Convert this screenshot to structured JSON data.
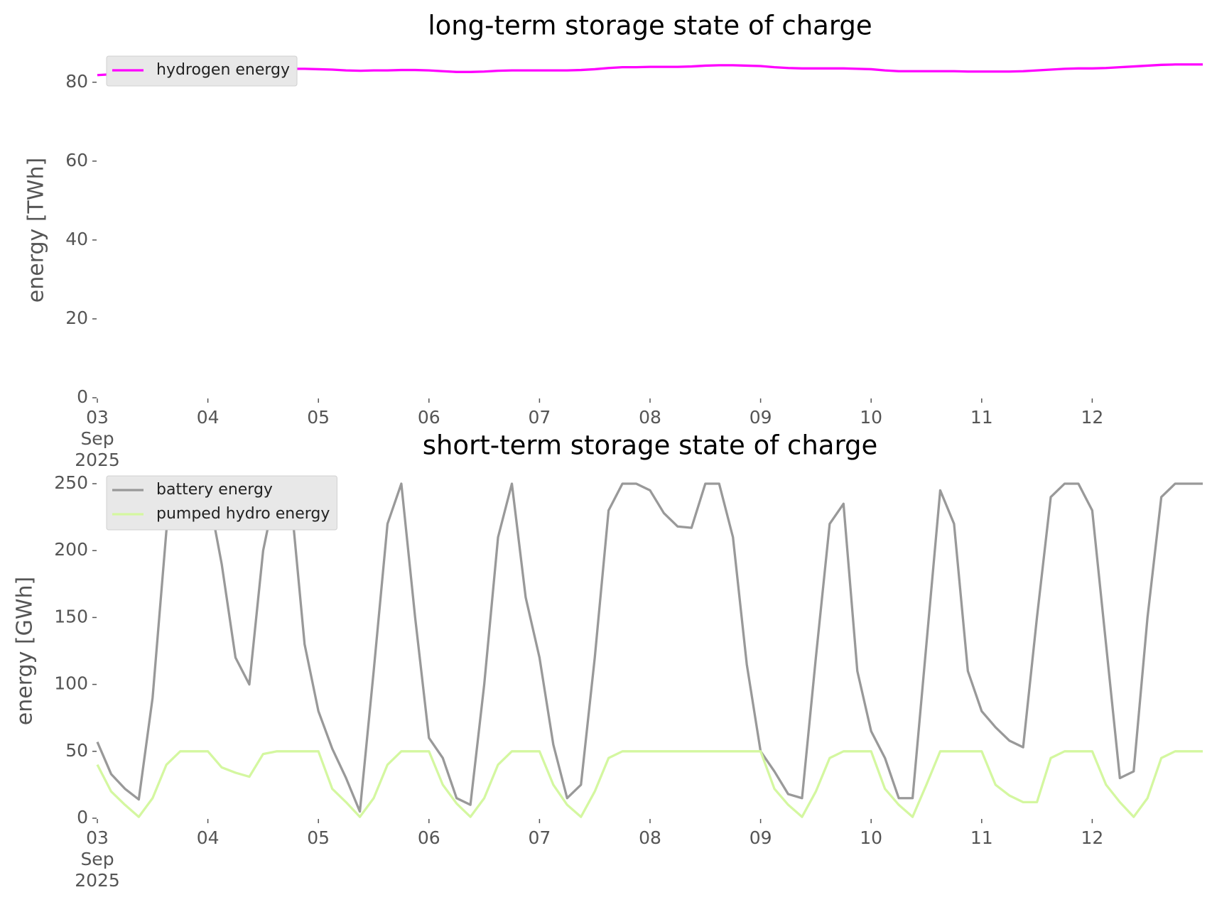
{
  "chart_data": [
    {
      "type": "line",
      "title": "long-term storage state of charge",
      "ylabel": "energy [TWh]",
      "x": [
        "2025-09-03 00:00",
        "2025-09-03 03:00",
        "2025-09-03 06:00",
        "2025-09-03 09:00",
        "2025-09-03 12:00",
        "2025-09-03 15:00",
        "2025-09-03 18:00",
        "2025-09-03 21:00",
        "2025-09-04 00:00",
        "2025-09-04 03:00",
        "2025-09-04 06:00",
        "2025-09-04 09:00",
        "2025-09-04 12:00",
        "2025-09-04 15:00",
        "2025-09-04 18:00",
        "2025-09-04 21:00",
        "2025-09-05 00:00",
        "2025-09-05 03:00",
        "2025-09-05 06:00",
        "2025-09-05 09:00",
        "2025-09-05 12:00",
        "2025-09-05 15:00",
        "2025-09-05 18:00",
        "2025-09-05 21:00",
        "2025-09-06 00:00",
        "2025-09-06 03:00",
        "2025-09-06 06:00",
        "2025-09-06 09:00",
        "2025-09-06 12:00",
        "2025-09-06 15:00",
        "2025-09-06 18:00",
        "2025-09-06 21:00",
        "2025-09-07 00:00",
        "2025-09-07 03:00",
        "2025-09-07 06:00",
        "2025-09-07 09:00",
        "2025-09-07 12:00",
        "2025-09-07 15:00",
        "2025-09-07 18:00",
        "2025-09-07 21:00",
        "2025-09-08 00:00",
        "2025-09-08 03:00",
        "2025-09-08 06:00",
        "2025-09-08 09:00",
        "2025-09-08 12:00",
        "2025-09-08 15:00",
        "2025-09-08 18:00",
        "2025-09-08 21:00",
        "2025-09-09 00:00",
        "2025-09-09 03:00",
        "2025-09-09 06:00",
        "2025-09-09 09:00",
        "2025-09-09 12:00",
        "2025-09-09 15:00",
        "2025-09-09 18:00",
        "2025-09-09 21:00",
        "2025-09-10 00:00",
        "2025-09-10 03:00",
        "2025-09-10 06:00",
        "2025-09-10 09:00",
        "2025-09-10 12:00",
        "2025-09-10 15:00",
        "2025-09-10 18:00",
        "2025-09-10 21:00",
        "2025-09-11 00:00",
        "2025-09-11 03:00",
        "2025-09-11 06:00",
        "2025-09-11 09:00",
        "2025-09-11 12:00",
        "2025-09-11 15:00",
        "2025-09-11 18:00",
        "2025-09-11 21:00",
        "2025-09-12 00:00",
        "2025-09-12 03:00",
        "2025-09-12 06:00",
        "2025-09-12 09:00",
        "2025-09-12 12:00",
        "2025-09-12 15:00",
        "2025-09-12 18:00",
        "2025-09-12 21:00",
        "2025-09-13 00:00"
      ],
      "series": [
        {
          "name": "hydrogen energy",
          "color": "#ff00ff",
          "values": [
            81.8,
            82.0,
            82.2,
            82.5,
            82.8,
            83.0,
            83.1,
            83.2,
            83.3,
            83.3,
            83.3,
            83.3,
            83.4,
            83.4,
            83.4,
            83.4,
            83.3,
            83.2,
            83.0,
            82.9,
            83.0,
            83.0,
            83.1,
            83.1,
            83.0,
            82.8,
            82.6,
            82.6,
            82.7,
            82.9,
            83.0,
            83.0,
            83.0,
            83.0,
            83.0,
            83.1,
            83.3,
            83.6,
            83.8,
            83.8,
            83.9,
            83.9,
            83.9,
            84.0,
            84.2,
            84.3,
            84.3,
            84.2,
            84.1,
            83.8,
            83.6,
            83.5,
            83.5,
            83.5,
            83.5,
            83.4,
            83.3,
            83.0,
            82.8,
            82.8,
            82.8,
            82.8,
            82.8,
            82.7,
            82.7,
            82.7,
            82.7,
            82.8,
            83.0,
            83.2,
            83.4,
            83.5,
            83.5,
            83.6,
            83.8,
            84.0,
            84.2,
            84.4,
            84.5,
            84.5,
            84.5
          ]
        }
      ],
      "xlim": [
        "2025-09-03 00:00",
        "2025-09-13 00:00"
      ],
      "xticks": [
        {
          "value": "2025-09-03 00:00",
          "label": "03\nSep\n2025"
        },
        {
          "value": "2025-09-04 00:00",
          "label": "04"
        },
        {
          "value": "2025-09-05 00:00",
          "label": "05"
        },
        {
          "value": "2025-09-06 00:00",
          "label": "06"
        },
        {
          "value": "2025-09-07 00:00",
          "label": "07"
        },
        {
          "value": "2025-09-08 00:00",
          "label": "08"
        },
        {
          "value": "2025-09-09 00:00",
          "label": "09"
        },
        {
          "value": "2025-09-10 00:00",
          "label": "10"
        },
        {
          "value": "2025-09-11 00:00",
          "label": "11"
        },
        {
          "value": "2025-09-12 00:00",
          "label": "12"
        }
      ],
      "ylim": [
        0,
        85
      ],
      "yticks": [
        0,
        20,
        40,
        60,
        80
      ],
      "grid": false,
      "legend": "upper left"
    },
    {
      "type": "line",
      "title": "short-term storage state of charge",
      "ylabel": "energy [GWh]",
      "x": [
        "2025-09-03 00:00",
        "2025-09-03 03:00",
        "2025-09-03 06:00",
        "2025-09-03 09:00",
        "2025-09-03 12:00",
        "2025-09-03 15:00",
        "2025-09-03 18:00",
        "2025-09-03 21:00",
        "2025-09-04 00:00",
        "2025-09-04 03:00",
        "2025-09-04 06:00",
        "2025-09-04 09:00",
        "2025-09-04 12:00",
        "2025-09-04 15:00",
        "2025-09-04 18:00",
        "2025-09-04 21:00",
        "2025-09-05 00:00",
        "2025-09-05 03:00",
        "2025-09-05 06:00",
        "2025-09-05 09:00",
        "2025-09-05 12:00",
        "2025-09-05 15:00",
        "2025-09-05 18:00",
        "2025-09-05 21:00",
        "2025-09-06 00:00",
        "2025-09-06 03:00",
        "2025-09-06 06:00",
        "2025-09-06 09:00",
        "2025-09-06 12:00",
        "2025-09-06 15:00",
        "2025-09-06 18:00",
        "2025-09-06 21:00",
        "2025-09-07 00:00",
        "2025-09-07 03:00",
        "2025-09-07 06:00",
        "2025-09-07 09:00",
        "2025-09-07 12:00",
        "2025-09-07 15:00",
        "2025-09-07 18:00",
        "2025-09-07 21:00",
        "2025-09-08 00:00",
        "2025-09-08 03:00",
        "2025-09-08 06:00",
        "2025-09-08 09:00",
        "2025-09-08 12:00",
        "2025-09-08 15:00",
        "2025-09-08 18:00",
        "2025-09-08 21:00",
        "2025-09-09 00:00",
        "2025-09-09 03:00",
        "2025-09-09 06:00",
        "2025-09-09 09:00",
        "2025-09-09 12:00",
        "2025-09-09 15:00",
        "2025-09-09 18:00",
        "2025-09-09 21:00",
        "2025-09-10 00:00",
        "2025-09-10 03:00",
        "2025-09-10 06:00",
        "2025-09-10 09:00",
        "2025-09-10 12:00",
        "2025-09-10 15:00",
        "2025-09-10 18:00",
        "2025-09-10 21:00",
        "2025-09-11 00:00",
        "2025-09-11 03:00",
        "2025-09-11 06:00",
        "2025-09-11 09:00",
        "2025-09-11 12:00",
        "2025-09-11 15:00",
        "2025-09-11 18:00",
        "2025-09-11 21:00",
        "2025-09-12 00:00",
        "2025-09-12 03:00",
        "2025-09-12 06:00",
        "2025-09-12 09:00",
        "2025-09-12 12:00",
        "2025-09-12 15:00",
        "2025-09-12 18:00",
        "2025-09-12 21:00",
        "2025-09-13 00:00"
      ],
      "series": [
        {
          "name": "battery energy",
          "color": "#999999",
          "values": [
            57,
            33,
            22,
            14,
            90,
            215,
            250,
            250,
            245,
            190,
            120,
            100,
            200,
            250,
            240,
            130,
            80,
            52,
            30,
            5,
            110,
            220,
            250,
            150,
            60,
            45,
            15,
            10,
            100,
            210,
            250,
            165,
            120,
            55,
            15,
            25,
            120,
            230,
            250,
            250,
            245,
            228,
            218,
            217,
            250,
            250,
            210,
            115,
            50,
            35,
            18,
            15,
            120,
            220,
            235,
            110,
            65,
            45,
            15,
            15,
            130,
            245,
            220,
            110,
            80,
            68,
            58,
            53,
            150,
            240,
            250,
            250,
            230,
            130,
            30,
            35,
            150,
            240,
            250,
            250,
            250
          ]
        },
        {
          "name": "pumped hydro energy",
          "color": "#d4f7a0",
          "values": [
            40,
            20,
            10,
            1,
            15,
            40,
            50,
            50,
            50,
            38,
            34,
            31,
            48,
            50,
            50,
            50,
            50,
            22,
            12,
            1,
            15,
            40,
            50,
            50,
            50,
            25,
            11,
            1,
            15,
            40,
            50,
            50,
            50,
            25,
            10,
            1,
            20,
            45,
            50,
            50,
            50,
            50,
            50,
            50,
            50,
            50,
            50,
            50,
            50,
            22,
            10,
            1,
            20,
            45,
            50,
            50,
            50,
            22,
            10,
            1,
            25,
            50,
            50,
            50,
            50,
            25,
            17,
            12,
            12,
            45,
            50,
            50,
            50,
            25,
            12,
            1,
            15,
            45,
            50,
            50,
            50
          ]
        }
      ],
      "xlim": [
        "2025-09-03 00:00",
        "2025-09-13 00:00"
      ],
      "xticks": [
        {
          "value": "2025-09-03 00:00",
          "label": "03\nSep\n2025"
        },
        {
          "value": "2025-09-04 00:00",
          "label": "04"
        },
        {
          "value": "2025-09-05 00:00",
          "label": "05"
        },
        {
          "value": "2025-09-06 00:00",
          "label": "06"
        },
        {
          "value": "2025-09-07 00:00",
          "label": "07"
        },
        {
          "value": "2025-09-08 00:00",
          "label": "08"
        },
        {
          "value": "2025-09-09 00:00",
          "label": "09"
        },
        {
          "value": "2025-09-10 00:00",
          "label": "10"
        },
        {
          "value": "2025-09-11 00:00",
          "label": "11"
        },
        {
          "value": "2025-09-12 00:00",
          "label": "12"
        }
      ],
      "ylim": [
        0,
        250
      ],
      "yticks": [
        0,
        50,
        100,
        150,
        200,
        250
      ],
      "grid": false,
      "legend": "upper left"
    }
  ]
}
